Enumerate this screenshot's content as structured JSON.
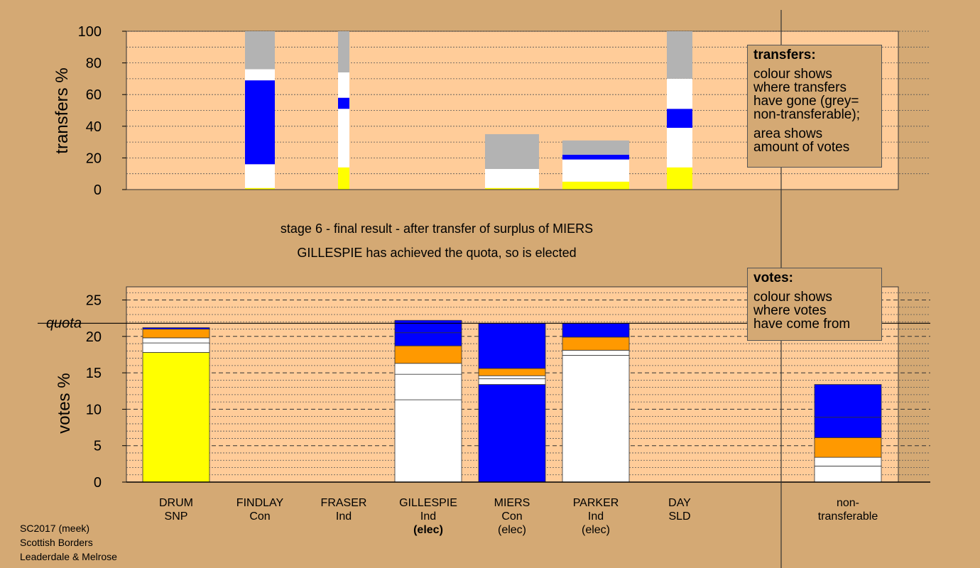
{
  "captions": {
    "line1": "stage 6 - final result - after transfer of surplus of MIERS",
    "line2": "GILLESPIE has achieved the quota, so is elected"
  },
  "legends": {
    "transfers": {
      "title": "transfers:",
      "text1": "colour shows\nwhere transfers\nhave gone (grey=\nnon-transferable);",
      "text2": "area shows\namount of votes"
    },
    "votes": {
      "title": "votes:",
      "text1": "colour shows\nwhere votes\nhave come from"
    }
  },
  "footer": {
    "line1": "SC2017 (meek)",
    "line2": "Scottish Borders",
    "line3": "Leaderdale & Melrose"
  },
  "colors": {
    "background": "#d4a974",
    "plot": "#ffcc99",
    "snp": "#ffff00",
    "con": "#0000ff",
    "ind": "#ffffff",
    "sld": "#ff9900",
    "nontransferable": "#b3b3b3"
  },
  "chart_data": [
    {
      "type": "bar",
      "ylabel": "transfers %",
      "ylim": [
        0,
        100
      ],
      "yticks": [
        "0",
        "20",
        "40",
        "60",
        "80",
        "100"
      ],
      "grid": "dotted",
      "bars": [
        {
          "candidate": "FINDLAY",
          "segments": [
            {
              "from": 0,
              "to": 1,
              "color": "#ffff00"
            },
            {
              "from": 1,
              "to": 16,
              "color": "#ffffff"
            },
            {
              "from": 16,
              "to": 69,
              "color": "#0000ff"
            },
            {
              "from": 69,
              "to": 76,
              "color": "#ffffff"
            },
            {
              "from": 76,
              "to": 100,
              "color": "#b3b3b3"
            }
          ]
        },
        {
          "candidate": "FRASER",
          "segments": [
            {
              "from": 0,
              "to": 14,
              "color": "#ffff00"
            },
            {
              "from": 14,
              "to": 51,
              "color": "#ffffff"
            },
            {
              "from": 51,
              "to": 58,
              "color": "#0000ff"
            },
            {
              "from": 58,
              "to": 74,
              "color": "#ffffff"
            },
            {
              "from": 74,
              "to": 100,
              "color": "#b3b3b3"
            }
          ]
        },
        {
          "candidate": "MIERS",
          "segments": [
            {
              "from": 0,
              "to": 1,
              "color": "#ffff00"
            },
            {
              "from": 1,
              "to": 13,
              "color": "#ffffff"
            },
            {
              "from": 13,
              "to": 35,
              "color": "#b3b3b3"
            }
          ]
        },
        {
          "candidate": "PARKER",
          "segments": [
            {
              "from": 0,
              "to": 5,
              "color": "#ffff00"
            },
            {
              "from": 5,
              "to": 19,
              "color": "#ffffff"
            },
            {
              "from": 19,
              "to": 22,
              "color": "#0000ff"
            },
            {
              "from": 22,
              "to": 31,
              "color": "#b3b3b3"
            }
          ]
        },
        {
          "candidate": "DAY",
          "segments": [
            {
              "from": 0,
              "to": 14,
              "color": "#ffff00"
            },
            {
              "from": 14,
              "to": 39,
              "color": "#ffffff"
            },
            {
              "from": 39,
              "to": 51,
              "color": "#0000ff"
            },
            {
              "from": 51,
              "to": 70,
              "color": "#ffffff"
            },
            {
              "from": 70,
              "to": 100,
              "color": "#b3b3b3"
            }
          ]
        }
      ]
    },
    {
      "type": "bar",
      "ylabel": "votes %",
      "ylim": [
        0,
        27
      ],
      "yticks": [
        "0",
        "5",
        "10",
        "15",
        "20",
        "25"
      ],
      "quota": {
        "label": "quota",
        "value": 21.8
      },
      "grid": "dashed",
      "categories": [
        {
          "name": "DRUM",
          "party": "SNP",
          "status": ""
        },
        {
          "name": "FINDLAY",
          "party": "Con",
          "status": ""
        },
        {
          "name": "FRASER",
          "party": "Ind",
          "status": ""
        },
        {
          "name": "GILLESPIE",
          "party": "Ind",
          "status": "(elec)"
        },
        {
          "name": "MIERS",
          "party": "Con",
          "status": "(elec)"
        },
        {
          "name": "PARKER",
          "party": "Ind",
          "status": "(elec)"
        },
        {
          "name": "DAY",
          "party": "SLD",
          "status": ""
        },
        {
          "name": "non-",
          "party": "transferable",
          "status": ""
        }
      ],
      "stacks": [
        [
          {
            "from": 0,
            "to": 17.8,
            "color": "#ffff00"
          },
          {
            "from": 17.8,
            "to": 19.1,
            "color": "#ffffff"
          },
          {
            "from": 19.1,
            "to": 19.8,
            "color": "#ffffff"
          },
          {
            "from": 19.8,
            "to": 21.0,
            "color": "#ff9900"
          },
          {
            "from": 21.0,
            "to": 21.2,
            "color": "#0000ff"
          }
        ],
        [],
        [],
        [
          {
            "from": 0,
            "to": 11.3,
            "color": "#ffffff"
          },
          {
            "from": 11.3,
            "to": 14.8,
            "color": "#ffffff"
          },
          {
            "from": 14.8,
            "to": 16.3,
            "color": "#ffffff"
          },
          {
            "from": 16.3,
            "to": 18.7,
            "color": "#ff9900"
          },
          {
            "from": 18.7,
            "to": 20.5,
            "color": "#0000ff"
          },
          {
            "from": 20.5,
            "to": 22.2,
            "color": "#0000ff"
          }
        ],
        [
          {
            "from": 0,
            "to": 13.4,
            "color": "#0000ff"
          },
          {
            "from": 13.4,
            "to": 14.2,
            "color": "#ffffff"
          },
          {
            "from": 14.2,
            "to": 14.6,
            "color": "#ffffff"
          },
          {
            "from": 14.6,
            "to": 15.6,
            "color": "#ff9900"
          },
          {
            "from": 15.6,
            "to": 21.8,
            "color": "#0000ff"
          }
        ],
        [
          {
            "from": 0,
            "to": 17.4,
            "color": "#ffffff"
          },
          {
            "from": 17.4,
            "to": 18.1,
            "color": "#ffffff"
          },
          {
            "from": 18.1,
            "to": 19.9,
            "color": "#ff9900"
          },
          {
            "from": 19.9,
            "to": 21.8,
            "color": "#0000ff"
          }
        ],
        [],
        [
          {
            "from": 0,
            "to": 2.2,
            "color": "#ffffff"
          },
          {
            "from": 2.2,
            "to": 3.4,
            "color": "#ffffff"
          },
          {
            "from": 3.4,
            "to": 6.1,
            "color": "#ff9900"
          },
          {
            "from": 6.1,
            "to": 8.9,
            "color": "#0000ff"
          },
          {
            "from": 8.9,
            "to": 13.4,
            "color": "#0000ff"
          }
        ]
      ]
    }
  ]
}
